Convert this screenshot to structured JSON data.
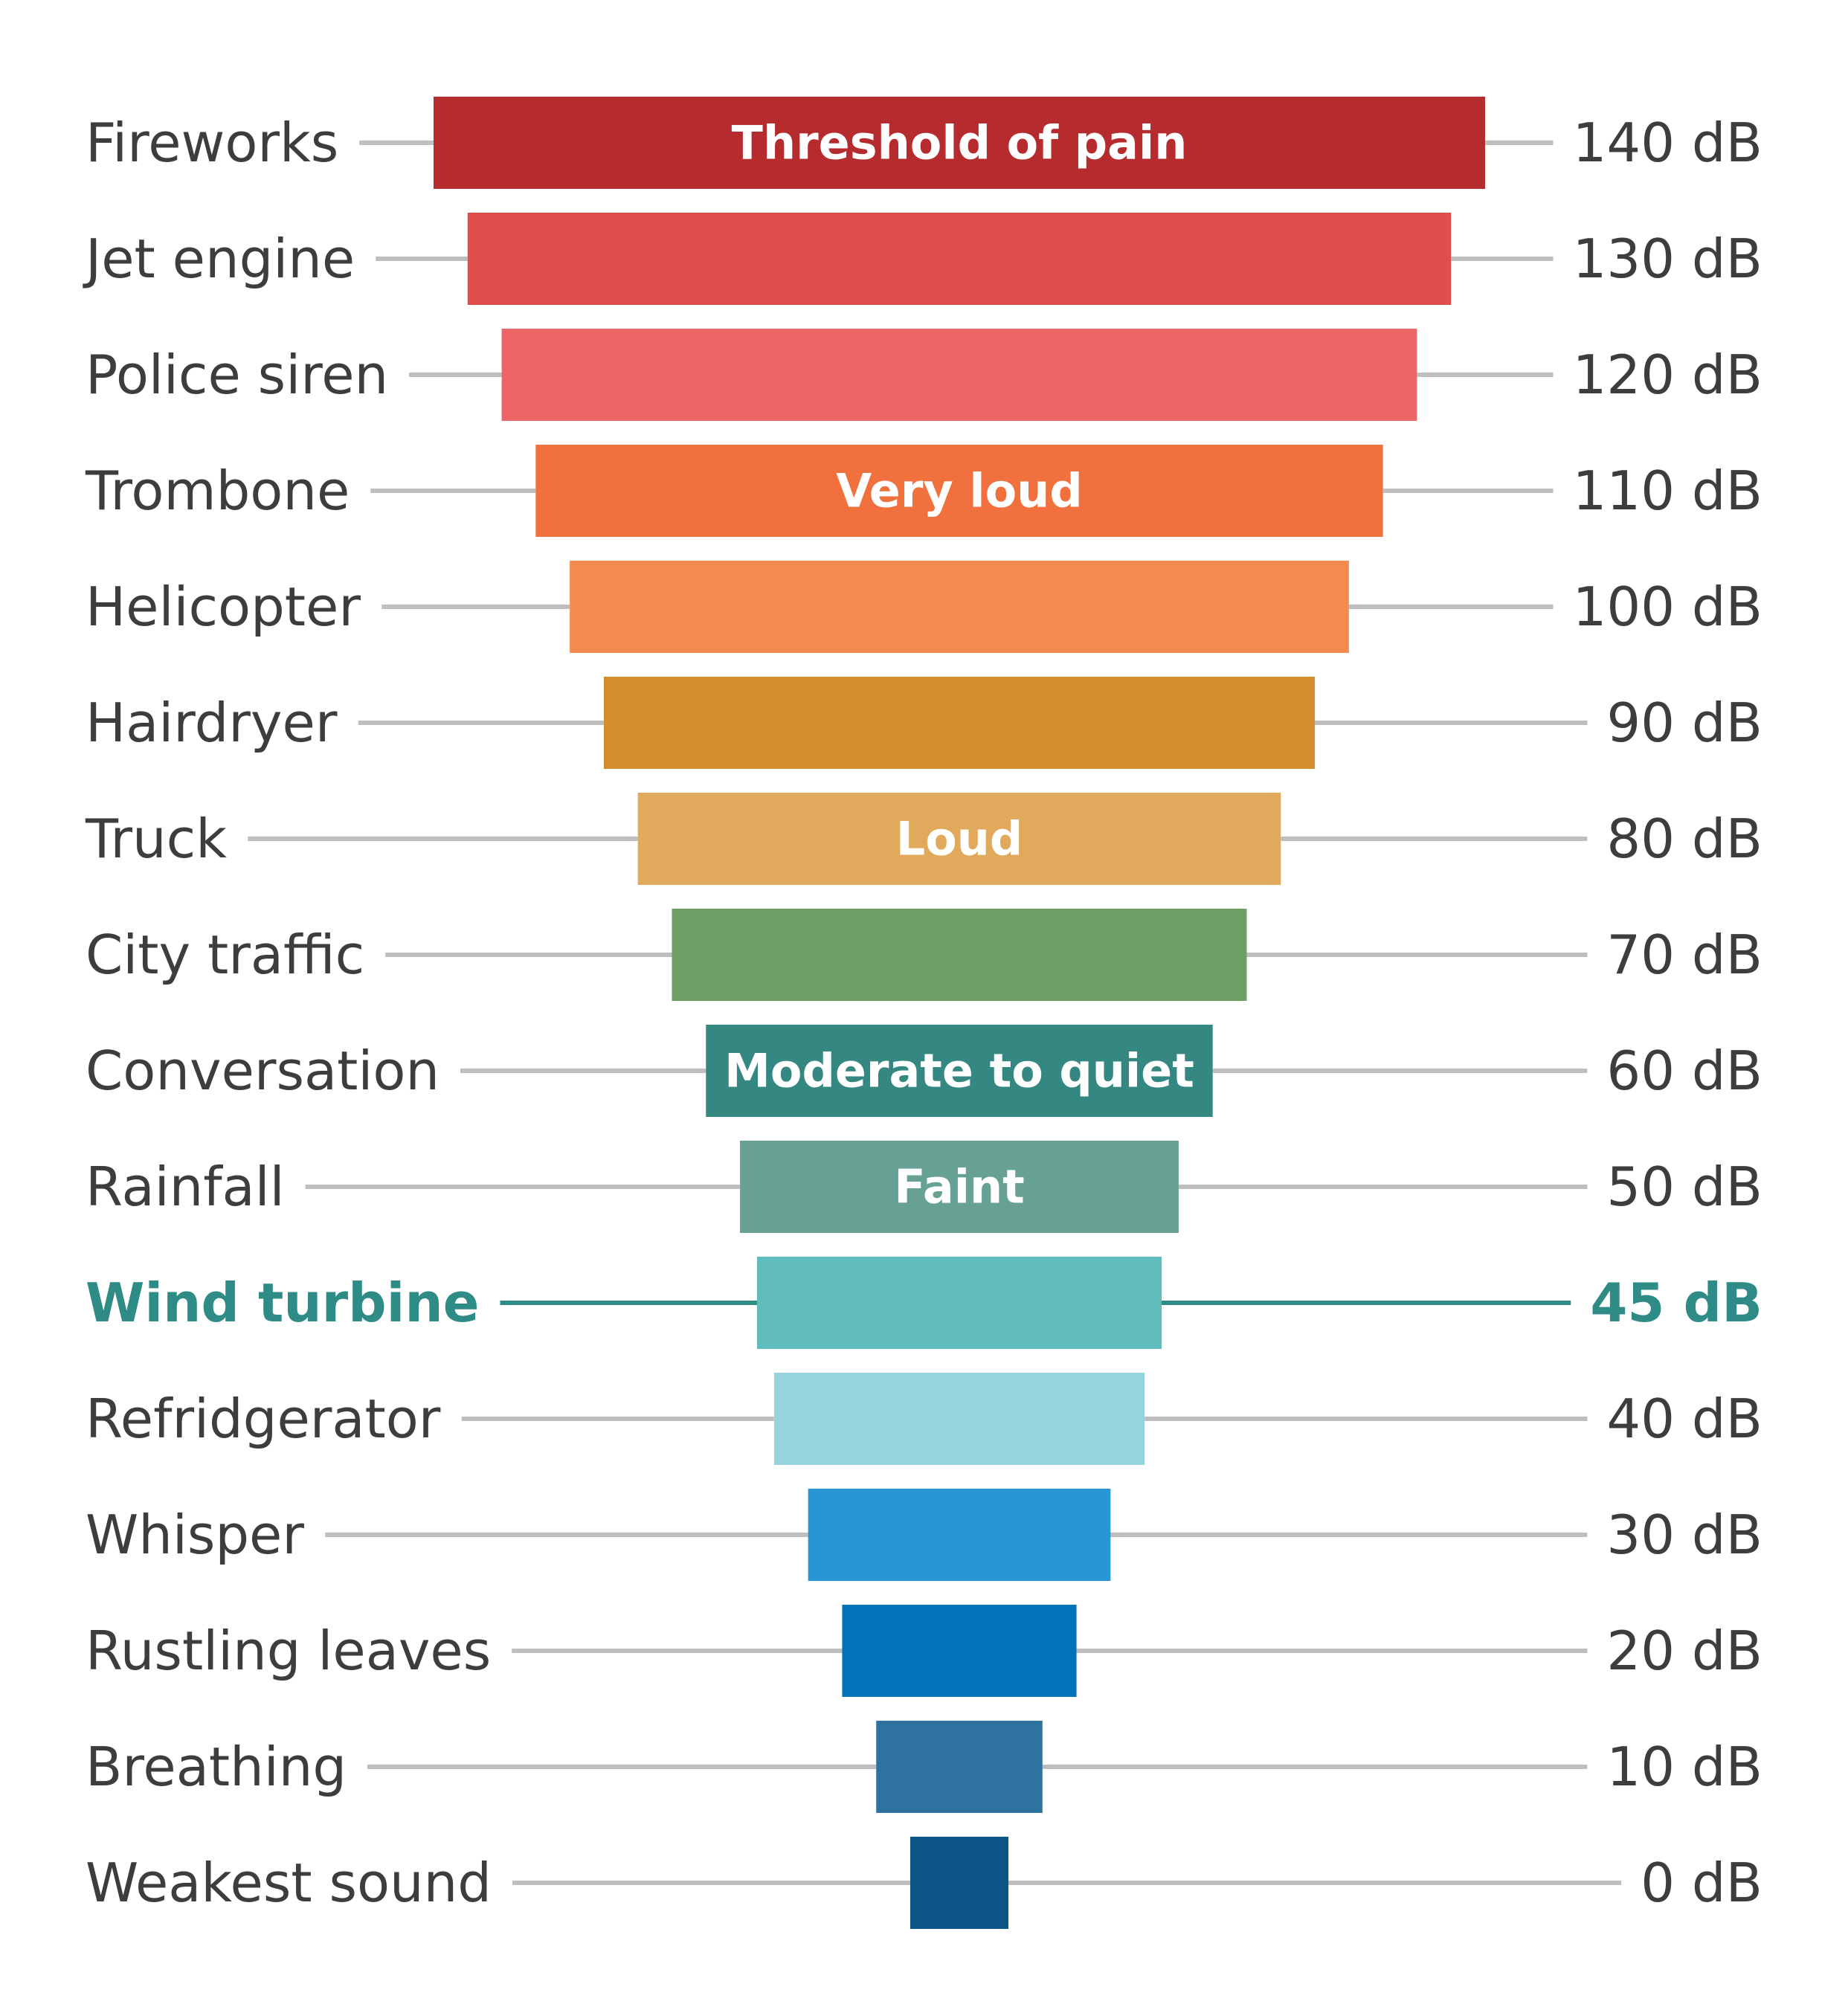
{
  "chart_data": {
    "type": "bar",
    "orientation": "horizontal-centered",
    "unit": "dB",
    "highlight_category": "Wind turbine",
    "highlight_color": "#2f8b86",
    "leader_color": "#bfbfbf",
    "grid": false,
    "rows": [
      {
        "category": "Fireworks",
        "value": 140,
        "value_label": "140 dB",
        "color": "#b52b2e",
        "band_label": "Threshold of pain"
      },
      {
        "category": "Jet engine",
        "value": 130,
        "value_label": "130 dB",
        "color": "#e04e4c"
      },
      {
        "category": "Police siren",
        "value": 120,
        "value_label": "120 dB",
        "color": "#ec6667"
      },
      {
        "category": "Trombone",
        "value": 110,
        "value_label": "110 dB",
        "color": "#f0713e",
        "band_label": "Very loud"
      },
      {
        "category": "Helicopter",
        "value": 100,
        "value_label": "100 dB",
        "color": "#f58a50"
      },
      {
        "category": "Hairdryer",
        "value": 90,
        "value_label": "90 dB",
        "color": "#d48e2c"
      },
      {
        "category": "Truck",
        "value": 80,
        "value_label": "80 dB",
        "color": "#e0a95c",
        "band_label": "Loud"
      },
      {
        "category": "City traffic",
        "value": 70,
        "value_label": "70 dB",
        "color": "#6d9e64"
      },
      {
        "category": "Conversation",
        "value": 60,
        "value_label": "60 dB",
        "color": "#358781",
        "band_label": "Moderate to quiet"
      },
      {
        "category": "Rainfall",
        "value": 50,
        "value_label": "50 dB",
        "color": "#66a194",
        "band_label": "Faint"
      },
      {
        "category": "Wind turbine",
        "value": 45,
        "value_label": "45 dB",
        "color": "#5fbcbb"
      },
      {
        "category": "Refridgerator",
        "value": 40,
        "value_label": "40 dB",
        "color": "#95d4dc"
      },
      {
        "category": "Whisper",
        "value": 30,
        "value_label": "30 dB",
        "color": "#2896d3"
      },
      {
        "category": "Rustling leaves",
        "value": 20,
        "value_label": "20 dB",
        "color": "#0273b8"
      },
      {
        "category": "Breathing",
        "value": 10,
        "value_label": "10 dB",
        "color": "#2e73a0"
      },
      {
        "category": "Weakest sound",
        "value": 0,
        "value_label": "0 dB",
        "color": "#0b5687"
      }
    ]
  }
}
